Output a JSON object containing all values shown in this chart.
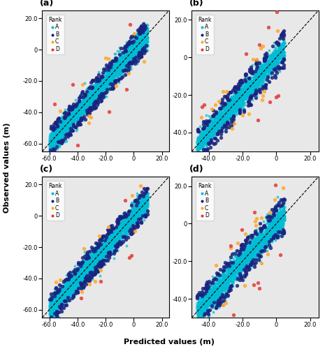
{
  "subplots": [
    "(a)",
    "(b)",
    "(c)",
    "(d)"
  ],
  "colors": {
    "A": "#00BCD4",
    "B": "#1A237E",
    "C": "#FFA726",
    "D": "#E53935"
  },
  "background_color": "#E8E8E8",
  "fig_background": "#FFFFFF",
  "marker_size_A": 8,
  "marker_size_BCD": 15,
  "alpha_A": 0.7,
  "alpha_BCD": 0.85,
  "ylabel": "Observed values (m)",
  "xlabel": "Predicted values (m)",
  "subplot_configs": [
    {
      "xlim": [
        -65,
        25
      ],
      "ylim": [
        -65,
        25
      ],
      "xticks": [
        -60,
        -40,
        -20,
        0,
        20
      ],
      "yticks": [
        -60,
        -40,
        -20,
        0,
        20
      ],
      "main_range": [
        -60,
        10
      ],
      "spread": 3.5,
      "n_A": 3000,
      "n_B": 280,
      "n_C": 12,
      "n_D": 6
    },
    {
      "xlim": [
        -50,
        25
      ],
      "ylim": [
        -50,
        25
      ],
      "xticks": [
        -40,
        -20,
        0,
        20
      ],
      "yticks": [
        -40,
        -20,
        0,
        20
      ],
      "main_range": [
        -47,
        5
      ],
      "spread": 3.0,
      "n_A": 2000,
      "n_B": 220,
      "n_C": 18,
      "n_D": 10
    },
    {
      "xlim": [
        -65,
        25
      ],
      "ylim": [
        -65,
        25
      ],
      "xticks": [
        -60,
        -40,
        -20,
        0,
        20
      ],
      "yticks": [
        -60,
        -40,
        -20,
        0,
        20
      ],
      "main_range": [
        -60,
        10
      ],
      "spread": 3.5,
      "n_A": 3000,
      "n_B": 280,
      "n_C": 12,
      "n_D": 6
    },
    {
      "xlim": [
        -50,
        25
      ],
      "ylim": [
        -50,
        25
      ],
      "xticks": [
        -40,
        -20,
        0,
        20
      ],
      "yticks": [
        -40,
        -20,
        0,
        20
      ],
      "main_range": [
        -47,
        5
      ],
      "spread": 3.5,
      "n_A": 2000,
      "n_B": 220,
      "n_C": 18,
      "n_D": 10
    }
  ]
}
